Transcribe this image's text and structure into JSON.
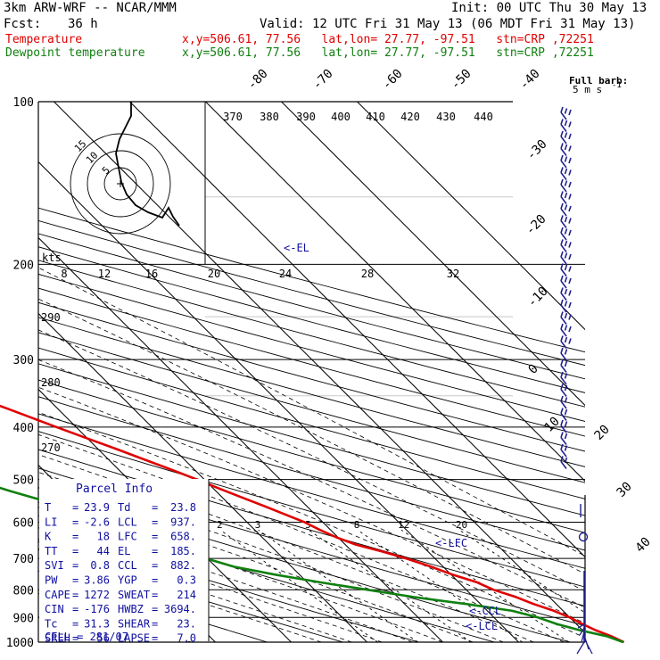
{
  "header": {
    "model": "3km ARW-WRF -- NCAR/MMM",
    "init": "Init: 00 UTC Thu 30 May 13",
    "fcst_label": "Fcst:",
    "fcst_value": "36 h",
    "valid": "Valid: 12 UTC Fri 31 May 13 (06 MDT Fri 31 May 13)",
    "temp_label": "Temperature",
    "temp_info": "x,y=506.61, 77.56   lat,lon= 27.77, -97.51   stn=CRP ,72251",
    "dew_label": "Dewpoint temperature",
    "dew_info": "x,y=506.61, 77.56   lat,lon= 27.77, -97.51   stn=CRP ,72251",
    "full_barb": "Full barb:",
    "full_barb_unit": "5 m s",
    "full_barb_exp": "-1"
  },
  "colors": {
    "temperature": "#e00000",
    "dewpoint": "#108010",
    "wind": "#202090",
    "el_label": "#1010a0",
    "grid": "#000000"
  },
  "chart_data": {
    "type": "line",
    "pressure_levels": [
      100,
      200,
      300,
      400,
      500,
      600,
      700,
      800,
      900,
      1000
    ],
    "isotherm_labels": [
      "-80",
      "-70",
      "-60",
      "-50",
      "-40",
      "-30",
      "-20",
      "-10",
      "0",
      "10",
      "20",
      "30",
      "40"
    ],
    "theta_labels": [
      "370",
      "380",
      "390",
      "400",
      "410",
      "420",
      "430",
      "440"
    ],
    "mixing_ratio_labels": [
      "2",
      "3",
      "5",
      "8",
      "12",
      "20"
    ],
    "pw_scale_label": "kts",
    "pw_scale_ticks": [
      "8",
      "12",
      "16",
      "20",
      "24",
      "28",
      "32"
    ],
    "dry_adiabat_labels": [
      "290",
      "280",
      "270"
    ],
    "markers": [
      "<-EL",
      "<-LFC",
      "<-CCL",
      "<-LCL"
    ],
    "hodograph_rings": [
      "5",
      "10",
      "15"
    ],
    "series": [
      {
        "name": "Temperature",
        "points": [
          [
            1000,
            23.9
          ],
          [
            975,
            23.0
          ],
          [
            950,
            21.7
          ],
          [
            925,
            20.8
          ],
          [
            900,
            20.0
          ],
          [
            875,
            18.8
          ],
          [
            850,
            17.0
          ],
          [
            825,
            15.6
          ],
          [
            800,
            13.6
          ],
          [
            775,
            12.4
          ],
          [
            750,
            10.2
          ],
          [
            725,
            8.4
          ],
          [
            700,
            6.2
          ],
          [
            680,
            4.0
          ],
          [
            660,
            1.4
          ],
          [
            640,
            -0.2
          ],
          [
            620,
            -1.4
          ],
          [
            600,
            -2.4
          ],
          [
            580,
            -4.0
          ],
          [
            560,
            -5.6
          ],
          [
            540,
            -7.4
          ],
          [
            520,
            -9.2
          ],
          [
            500,
            -11.0
          ],
          [
            480,
            -13.0
          ],
          [
            460,
            -15.2
          ],
          [
            440,
            -17.5
          ],
          [
            420,
            -20.0
          ],
          [
            400,
            -22.6
          ],
          [
            370,
            -26.6
          ],
          [
            340,
            -31.2
          ],
          [
            310,
            -36.4
          ],
          [
            280,
            -42.2
          ],
          [
            250,
            -48.4
          ],
          [
            225,
            -54.4
          ],
          [
            200,
            -60.4
          ],
          [
            180,
            -65.3
          ],
          [
            160,
            -70.5
          ],
          [
            140,
            -75.6
          ],
          [
            120,
            -79.8
          ],
          [
            110,
            -80.5
          ],
          [
            105,
            -79.3
          ],
          [
            100,
            -77.0
          ]
        ]
      },
      {
        "name": "Dewpoint temperature",
        "points": [
          [
            1000,
            23.8
          ],
          [
            975,
            22.4
          ],
          [
            950,
            19.6
          ],
          [
            925,
            17.4
          ],
          [
            900,
            15.8
          ],
          [
            875,
            13.3
          ],
          [
            850,
            8.1
          ],
          [
            825,
            2.1
          ],
          [
            800,
            -3.0
          ],
          [
            775,
            -8.3
          ],
          [
            750,
            -13.2
          ],
          [
            725,
            -17.6
          ],
          [
            700,
            -20.2
          ],
          [
            680,
            -20.5
          ],
          [
            660,
            -21.0
          ],
          [
            640,
            -21.6
          ],
          [
            620,
            -24.2
          ],
          [
            600,
            -27.2
          ],
          [
            575,
            -29.6
          ],
          [
            550,
            -33.6
          ],
          [
            525,
            -37.2
          ],
          [
            500,
            -40.4
          ],
          [
            475,
            -43.8
          ],
          [
            450,
            -46.0
          ],
          [
            425,
            -47.3
          ],
          [
            400,
            -48.6
          ],
          [
            375,
            -49.3
          ],
          [
            350,
            -51.4
          ],
          [
            325,
            -54.4
          ],
          [
            300,
            -57.6
          ],
          [
            280,
            -60.6
          ],
          [
            260,
            -64.0
          ],
          [
            240,
            -67.6
          ],
          [
            220,
            -71.2
          ],
          [
            200,
            -74.7
          ],
          [
            180,
            -78.4
          ],
          [
            170,
            -80.0
          ],
          [
            160,
            -81.0
          ],
          [
            150,
            -81.2
          ],
          [
            140,
            -81.2
          ],
          [
            130,
            -80.8
          ],
          [
            120,
            -80.2
          ],
          [
            110,
            -79.6
          ],
          [
            100,
            -79.0
          ]
        ]
      }
    ]
  },
  "parcel_info": {
    "title": "Parcel Info",
    "rows": [
      {
        "l1": "T",
        "v1": "23.9",
        "l2": "Td",
        "v2": "23.8"
      },
      {
        "l1": "LI",
        "v1": "-2.6",
        "l2": "LCL",
        "v2": "937."
      },
      {
        "l1": "K",
        "v1": "18",
        "l2": "LFC",
        "v2": "658."
      },
      {
        "l1": "TT",
        "v1": "44",
        "l2": "EL",
        "v2": "185."
      },
      {
        "l1": "SVI",
        "v1": "0.8",
        "l2": "CCL",
        "v2": "882."
      },
      {
        "l1": "PW",
        "v1": "3.86",
        "l2": "YGP",
        "v2": "0.3"
      },
      {
        "l1": "CAPE",
        "v1": "1272",
        "l2": "SWEAT",
        "v2": "214"
      },
      {
        "l1": "CIN",
        "v1": "-176",
        "l2": "HWBZ",
        "v2": "3694."
      },
      {
        "l1": "Tc",
        "v1": "31.3",
        "l2": "SHEAR",
        "v2": "23."
      },
      {
        "l1": "SREH",
        "v1": "56",
        "l2": "LAPSE",
        "v2": "7.0"
      }
    ],
    "cell_label": "CELL",
    "cell_value": "281/07"
  }
}
